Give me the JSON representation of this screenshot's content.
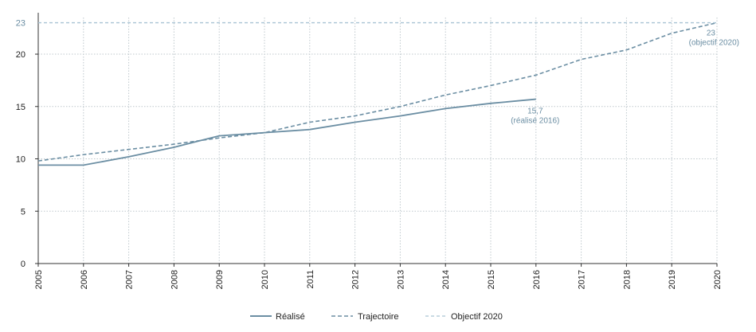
{
  "chart_data": {
    "type": "line",
    "x": [
      2005,
      2006,
      2007,
      2008,
      2009,
      2010,
      2011,
      2012,
      2013,
      2014,
      2015,
      2016,
      2017,
      2018,
      2019,
      2020
    ],
    "xtick_labels": [
      "2005",
      "2006",
      "2007",
      "2008",
      "2009",
      "2010",
      "2011",
      "2012",
      "2013",
      "2014",
      "2015",
      "2016",
      "2017",
      "2018",
      "2019",
      "2020"
    ],
    "yticks": [
      0,
      5,
      10,
      15,
      20
    ],
    "ytick_labels": [
      "0",
      "5",
      "10",
      "15",
      "20"
    ],
    "ylim": [
      0,
      23.5
    ],
    "xlim": [
      2005,
      2020
    ],
    "series": [
      {
        "name": "Réalisé",
        "style": "solid",
        "color": "#6b8ea3",
        "x": [
          2005,
          2006,
          2007,
          2008,
          2009,
          2010,
          2011,
          2012,
          2013,
          2014,
          2015,
          2016
        ],
        "values": [
          9.4,
          9.4,
          10.2,
          11.1,
          12.2,
          12.5,
          12.8,
          13.5,
          14.1,
          14.8,
          15.3,
          15.7
        ]
      },
      {
        "name": "Trajectoire",
        "style": "dashed",
        "color": "#6b8ea3",
        "x": [
          2005,
          2006,
          2007,
          2008,
          2009,
          2010,
          2011,
          2012,
          2013,
          2014,
          2015,
          2016,
          2017,
          2018,
          2019,
          2020
        ],
        "values": [
          9.8,
          10.4,
          10.9,
          11.4,
          12.0,
          12.5,
          13.5,
          14.1,
          15.0,
          16.1,
          17.0,
          18.0,
          19.5,
          20.4,
          22.0,
          23.0
        ]
      },
      {
        "name": "Objectif 2020",
        "style": "dashed-light",
        "color": "#a9c4d4",
        "x": [
          2005,
          2020
        ],
        "values": [
          23,
          23
        ]
      }
    ],
    "objective_axis_label": "23",
    "annotations": [
      {
        "id": "realise-2016",
        "x": 2016,
        "y": 15.7,
        "line1": "15,7",
        "line2": "(réalisé 2016)"
      },
      {
        "id": "objectif-2020",
        "x": 2020,
        "y": 23,
        "line1": "23",
        "line2": "(objectif 2020)"
      }
    ],
    "legend": [
      "Réalisé",
      "Trajectoire",
      "Objectif 2020"
    ],
    "legend_position": "bottom-center",
    "grid": {
      "vertical": true,
      "horizontal": true
    }
  }
}
